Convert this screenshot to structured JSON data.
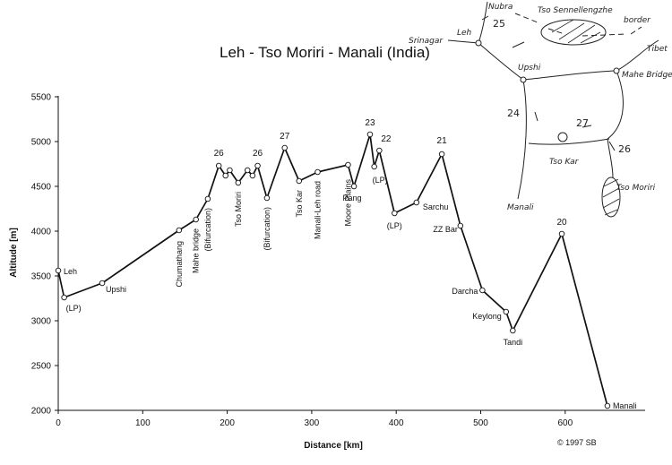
{
  "chart_data": {
    "type": "line",
    "title": "Leh - Tso Moriri - Manali (India)",
    "xlabel": "Distance [km]",
    "ylabel": "Altitude [m]",
    "xlim": [
      0,
      700
    ],
    "ylim": [
      2000,
      5500
    ],
    "xticks": [
      "0",
      "100",
      "200",
      "300",
      "400",
      "500",
      "600"
    ],
    "yticks": [
      "2000",
      "2500",
      "3000",
      "3500",
      "4000",
      "4500",
      "5000",
      "5500"
    ],
    "grid": false,
    "points": [
      {
        "x": 0,
        "y": 3560,
        "label": "Leh"
      },
      {
        "x": 7,
        "y": 3260,
        "label": "(LP)"
      },
      {
        "x": 52,
        "y": 3420,
        "label": "Upshi"
      },
      {
        "x": 143,
        "y": 4010,
        "label": "Chumathang"
      },
      {
        "x": 163,
        "y": 4130,
        "label": "Mahe bridge"
      },
      {
        "x": 177,
        "y": 4360,
        "label": "(Bifurcation)"
      },
      {
        "x": 190,
        "y": 4730,
        "label": "26"
      },
      {
        "x": 198,
        "y": 4620,
        "label": ""
      },
      {
        "x": 203,
        "y": 4680,
        "label": ""
      },
      {
        "x": 213,
        "y": 4540,
        "label": "Tso Moriri"
      },
      {
        "x": 224,
        "y": 4680,
        "label": ""
      },
      {
        "x": 230,
        "y": 4620,
        "label": ""
      },
      {
        "x": 236,
        "y": 4730,
        "label": "26"
      },
      {
        "x": 247,
        "y": 4370,
        "label": "(Bifurcation)"
      },
      {
        "x": 268,
        "y": 4930,
        "label": "27"
      },
      {
        "x": 285,
        "y": 4560,
        "label": "Tso Kar"
      },
      {
        "x": 307,
        "y": 4660,
        "label": "Manali-Leh road"
      },
      {
        "x": 343,
        "y": 4740,
        "label": "Moore Plains"
      },
      {
        "x": 350,
        "y": 4500,
        "label": "Pang"
      },
      {
        "x": 369,
        "y": 5080,
        "label": "23"
      },
      {
        "x": 374,
        "y": 4720,
        "label": "(LP)"
      },
      {
        "x": 380,
        "y": 4900,
        "label": "22"
      },
      {
        "x": 398,
        "y": 4200,
        "label": "(LP)"
      },
      {
        "x": 424,
        "y": 4320,
        "label": "Sarchu"
      },
      {
        "x": 454,
        "y": 4860,
        "label": "21"
      },
      {
        "x": 476,
        "y": 4060,
        "label": "ZZ Bar"
      },
      {
        "x": 502,
        "y": 3340,
        "label": "Darcha"
      },
      {
        "x": 530,
        "y": 3100,
        "label": "Keylong"
      },
      {
        "x": 538,
        "y": 2890,
        "label": "Tandi"
      },
      {
        "x": 596,
        "y": 3970,
        "label": "20"
      },
      {
        "x": 650,
        "y": 2050,
        "label": "Manali"
      }
    ]
  },
  "map_sketch": {
    "places": [
      "Nubra",
      "Leh",
      "Srinagar",
      "Tso Sennellengzhe",
      "border",
      "Tibet",
      "Upshi",
      "Mahe Bridge",
      "Manali",
      "Tso Kar",
      "Tso Moriri"
    ],
    "pass_numbers": [
      "25",
      "24",
      "27",
      "26"
    ]
  },
  "credit": "© 1997 SB"
}
